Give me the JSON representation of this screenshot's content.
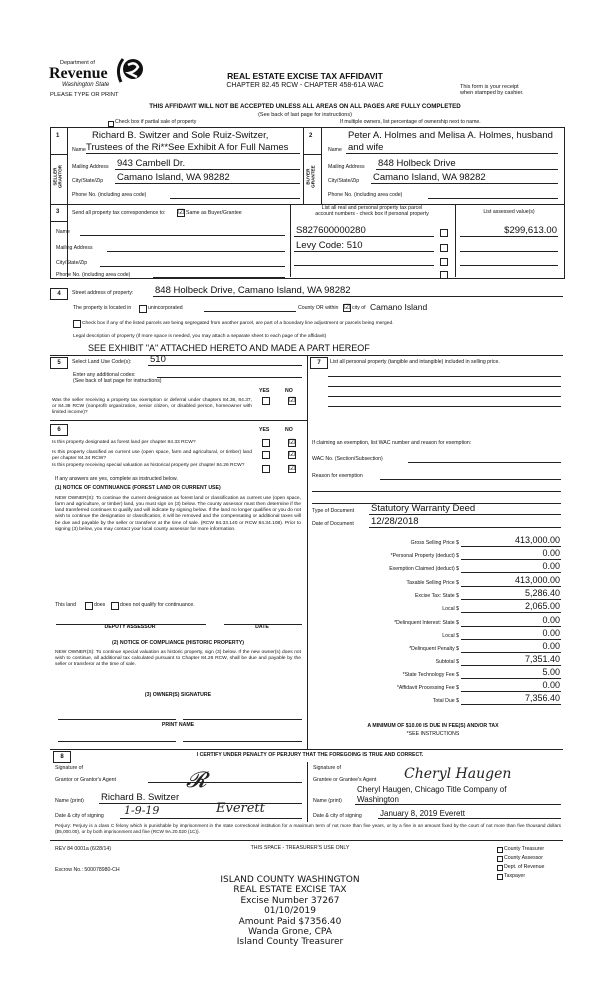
{
  "header": {
    "dept": "Department of",
    "revenue": "Revenue",
    "state": "Washington State",
    "please": "PLEASE TYPE OR PRINT",
    "title": "REAL ESTATE EXCISE TAX AFFIDAVIT",
    "subtitle": "CHAPTER 82.45 RCW - CHAPTER 458-61A WAC",
    "receipt1": "This form is your receipt",
    "receipt2": "when stamped by cashier.",
    "warning": "THIS AFFIDAVIT WILL NOT BE ACCEPTED UNLESS ALL AREAS ON ALL PAGES ARE FULLY COMPLETED",
    "see_back": "(See back of last page for instructions)",
    "partial": "Check box if partial sale of property",
    "multiple": "If multiple owners, list percentage of ownership next to name."
  },
  "seller": {
    "num": "1",
    "side": "SELLER GRANTOR",
    "name1": "Richard B. Switzer and Sole Ruiz-Switzer,",
    "name_label": "Name",
    "name2": "Trustees of the Ri**See Exhibit A for Full Names",
    "mail_label": "Mailing Address",
    "mail": "943 Cambell Dr.",
    "city_label": "City/State/Zip",
    "city": "Camano Island, WA 98282",
    "phone_label": "Phone No. (including area code)"
  },
  "buyer": {
    "num": "2",
    "side": "BUYER GRANTEE",
    "name1": "Peter A. Holmes and Melisa A. Holmes, husband",
    "name_label": "Name",
    "name2": "and wife",
    "mail_label": "Mailing Address",
    "mail": "848 Holbeck Drive",
    "city_label": "City/State/Zip",
    "city": "Camano Island, WA 98282",
    "phone_label": "Phone No. (including area code)"
  },
  "s3": {
    "num": "3",
    "send": "Send all property tax correspondence to:",
    "same": "Same as Buyer/Grantee",
    "same_checked": true,
    "list1": "List all real and personal property tax parcel",
    "list2": "account numbers - check box if personal property",
    "assessed": "List assessed value(s)",
    "name": "Name",
    "mail": "Mailing Address",
    "city": "City/State/Zip",
    "phone": "Phone No. (including area code)",
    "parcels": [
      "S827600000280",
      "Levy Code:  510",
      "",
      ""
    ],
    "values": [
      "$299,613.00",
      "",
      "",
      ""
    ]
  },
  "s4": {
    "num": "4",
    "street_label": "Street address of property:",
    "street": "848 Holbeck Drive, Camano Island, WA 98282",
    "located": "The property is located in",
    "unincorp": "unincorporated",
    "county_or": "County OR within",
    "city_of": "city of",
    "city": "Camano Island",
    "segregated": "Check box if any of the listed parcels are being segregated from another parcel, are part of a boundary line adjustment or parcels being merged.",
    "legal": "Legal description of property (if more space is needed, you may attach a separate sheet to each page of the affidavit)",
    "legal_value": "SEE EXHIBIT \"A\" ATTACHED HERETO AND MADE A PART HEREOF"
  },
  "s5": {
    "num": "5",
    "code_label": "Select Land Use Code(s):",
    "code": "510",
    "additional": "Enter any additional codes:",
    "see_back": "(See back of last page for instructions)",
    "yes": "YES",
    "no": "NO",
    "q": "Was the seller receiving a property tax exemption or deferral under chapters 84.36, 84.37, or 84.38 RCW (nonprofit organization, senior citizen, or disabled person, homeowner with limited income)?",
    "answer": "NO"
  },
  "s6": {
    "num": "6",
    "yes": "YES",
    "no": "NO",
    "questions": [
      {
        "q": "Is this property designated as forest land per chapter 84.33 RCW?",
        "answer": "NO"
      },
      {
        "q": "Is this property classified as current use (open space, farm and agricultural, or timber) land per chapter 84.34 RCW?",
        "answer": "NO"
      },
      {
        "q": "Is this property receiving special valuation as historical property per chapter 84.26 RCW?",
        "answer": "NO"
      }
    ],
    "if_yes": "If any answers are yes, complete as instructed below.",
    "n1_title": "(1) NOTICE OF CONTINUANCE (FOREST LAND OR CURRENT USE)",
    "n1_text": "NEW OWNER(S): To continue the current designation as forest land or classification as current use (open space, farm and agriculture, or timber) land, you must sign on (3) below. The county assessor must then determine if the land transferred continues to qualify and will indicate by signing below. If the land no longer qualifies or you do not wish to continue the designation or classification, it will be removed and the compensating or additional taxes will be due and payable by the seller or transferor at the time of sale. (RCW 84.33.140 or RCW 84.34.108). Prior to signing (3) below, you may contact your local county assessor for more information.",
    "this_land": "This land",
    "does": "does",
    "does_not": "does not qualify for continuance.",
    "deputy": "DEPUTY ASSESSOR",
    "date": "DATE",
    "n2_title": "(2) NOTICE OF COMPLIANCE (HISTORIC PROPERTY)",
    "n2_text": "NEW OWNER(S): To continue special valuation as historic property, sign (3) below. If the new owner(s) does not wish to continue, all additional tax calculated pursuant to Chapter 84.26 RCW, shall be due and payable by the seller or transferor at the time of sale.",
    "n3_title": "(3) OWNER(S) SIGNATURE",
    "print_name": "PRINT NAME"
  },
  "s7": {
    "num": "7",
    "list": "List all personal property (tangible and intangible) included in selling price.",
    "claiming": "If claiming an exemption, list WAC number and reason for exemption:",
    "wac": "WAC No. (Section/Subsection)",
    "reason": "Reason for exemption",
    "type_label": "Type of Document",
    "type": "Statutory Warranty Deed",
    "date_label": "Date of Document",
    "date": "12/28/2018"
  },
  "taxes": [
    {
      "label": "Gross Selling Price $",
      "value": "413,000.00"
    },
    {
      "label": "*Personal Property (deduct) $",
      "value": "0.00"
    },
    {
      "label": "Exemption Claimed (deduct) $",
      "value": "0.00"
    },
    {
      "label": "Taxable Selling Price $",
      "value": "413,000.00"
    },
    {
      "label": "Excise Tax: State $",
      "value": "5,286.40"
    },
    {
      "label": "Local $",
      "value": "2,065.00"
    },
    {
      "label": "*Delinquent Interest: State $",
      "value": "0.00"
    },
    {
      "label": "Local $",
      "value": "0.00"
    },
    {
      "label": "*Delinquent Penalty $",
      "value": "0.00"
    },
    {
      "label": "Subtotal $",
      "value": "7,351.40"
    },
    {
      "label": "*State Technology Fee $",
      "value": "5.00"
    },
    {
      "label": "*Affidavit Processing Fee $",
      "value": "0.00"
    },
    {
      "label": "Total Due $",
      "value": "7,356.40"
    }
  ],
  "minimum": "A MINIMUM OF $10.00 IS DUE IN FEE(S) AND/OR TAX",
  "see_instr": "*SEE INSTRUCTIONS",
  "s8": {
    "num": "8",
    "certify": "I CERTIFY UNDER PENALTY OF PERJURY THAT THE FOREGOING IS TRUE AND CORRECT.",
    "sig_of": "Signature of",
    "grantor_agent": "Grantor or Grantor's Agent",
    "grantee_agent": "Grantee or Grantee's Agent",
    "name_print": "Name (print)",
    "grantor_name": "Richard B. Switzer",
    "grantee_name1": "Cheryl Haugen, Chicago Title Company of",
    "grantee_name2": "Washington",
    "date_city": "Date & city of signing",
    "grantor_date": "1-9-19",
    "grantor_city": "Everett",
    "grantee_date": "January 8, 2019 Everett",
    "grantee_sig": "Cheryl Haugen"
  },
  "perjury": "Perjury: Perjury is a class C felony which is punishable by imprisonment in the state correctional institution for a maximum term of not more than five years, or by a fine in an amount fixed by the court of not more than five thousand dollars ($5,000.00), or by both imprisonment and fine (RCW 9A.20.020 (1C)).",
  "footer": {
    "rev": "REV 84 0001a (6/28/14)",
    "treasurer_use": "THIS SPACE - TREASURER'S USE ONLY",
    "escrow": "Escrow No.: 500078980-CH",
    "copies": [
      "County Treasurer",
      "County Assessor",
      "Dept. of Revenue",
      "Taxpayer"
    ]
  },
  "stamp": [
    "ISLAND COUNTY WASHINGTON",
    "REAL ESTATE EXCISE TAX",
    "Excise Number 37267",
    "01/10/2019",
    "Amount Paid $7356.40",
    "Wanda Grone, CPA",
    "Island County Treasurer"
  ]
}
